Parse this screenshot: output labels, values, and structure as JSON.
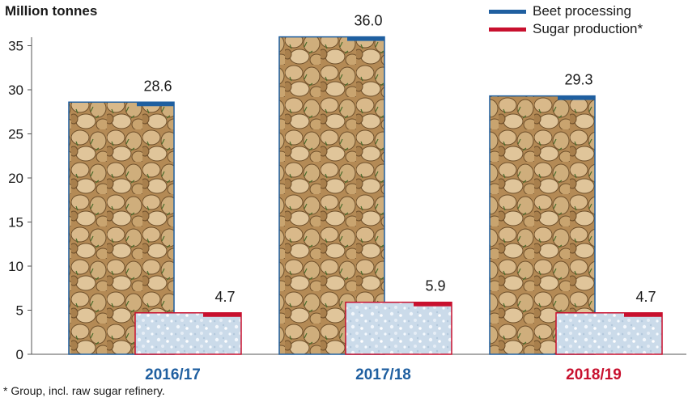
{
  "chart_data": {
    "type": "bar",
    "ylabel": "Million tonnes",
    "ylim": [
      0,
      35
    ],
    "yticks": [
      0,
      5,
      10,
      15,
      20,
      25,
      30,
      35
    ],
    "categories": [
      "2016/17",
      "2017/18",
      "2018/19"
    ],
    "category_colors": [
      "#1f5fa0",
      "#1f5fa0",
      "#c8102e"
    ],
    "series": [
      {
        "name": "Beet processing",
        "values": [
          28.6,
          36.0,
          29.3
        ],
        "value_labels": [
          "28.6",
          "36.0",
          "29.3"
        ],
        "color": "#1f5fa0",
        "fill": "sugar-beet-photo"
      },
      {
        "name": "Sugar production*",
        "values": [
          4.7,
          5.9,
          4.7
        ],
        "value_labels": [
          "4.7",
          "5.9",
          "4.7"
        ],
        "color": "#c8102e",
        "fill": "sugar-crystal-photo"
      }
    ],
    "grid": false,
    "legend_position": "top-right",
    "footnote": "* Group, incl. raw sugar refinery."
  }
}
